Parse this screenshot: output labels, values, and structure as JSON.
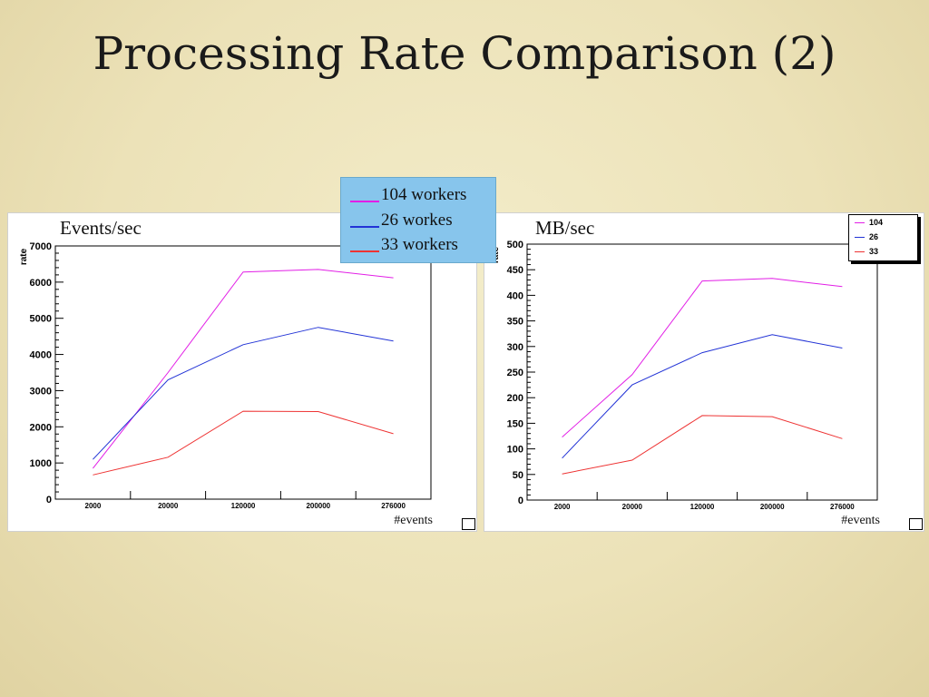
{
  "slide": {
    "title": "Processing Rate Comparison (2)"
  },
  "legend_left": {
    "items": [
      {
        "label": "104 workers",
        "color": "#e21ee6"
      },
      {
        "label": "26 workes",
        "color": "#2233d6"
      },
      {
        "label": "33 workers",
        "color": "#ee3333"
      }
    ]
  },
  "legend_right": {
    "items": [
      {
        "label": "104",
        "color": "#e21ee6"
      },
      {
        "label": "26",
        "color": "#2233d6"
      },
      {
        "label": "33",
        "color": "#ee3333"
      }
    ]
  },
  "chart_data": [
    {
      "type": "line",
      "title": "Events/sec",
      "ylabel": "rate",
      "xlabel": "#events",
      "categories": [
        "2000",
        "20000",
        "120000",
        "200000",
        "276000"
      ],
      "ylim": [
        0,
        7000
      ],
      "yticks": [
        0,
        1000,
        2000,
        3000,
        4000,
        5000,
        6000,
        7000
      ],
      "series": [
        {
          "name": "104",
          "color": "#e21ee6",
          "values": [
            850,
            3500,
            6280,
            6350,
            6120
          ]
        },
        {
          "name": "26",
          "color": "#2233d6",
          "values": [
            1100,
            3300,
            4270,
            4750,
            4370
          ]
        },
        {
          "name": "33",
          "color": "#ee3333",
          "values": [
            670,
            1160,
            2430,
            2420,
            1810
          ]
        }
      ]
    },
    {
      "type": "line",
      "title": "MB/sec",
      "ylabel": "rate",
      "xlabel": "#events",
      "categories": [
        "2000",
        "20000",
        "120000",
        "200000",
        "276000"
      ],
      "ylim": [
        0,
        500
      ],
      "yticks": [
        0,
        50,
        100,
        150,
        200,
        250,
        300,
        350,
        400,
        450,
        500
      ],
      "series": [
        {
          "name": "104",
          "color": "#e21ee6",
          "values": [
            123,
            245,
            428,
            433,
            417
          ]
        },
        {
          "name": "26",
          "color": "#2233d6",
          "values": [
            82,
            225,
            288,
            323,
            297
          ]
        },
        {
          "name": "33",
          "color": "#ee3333",
          "values": [
            51,
            78,
            165,
            163,
            120
          ]
        }
      ]
    }
  ]
}
